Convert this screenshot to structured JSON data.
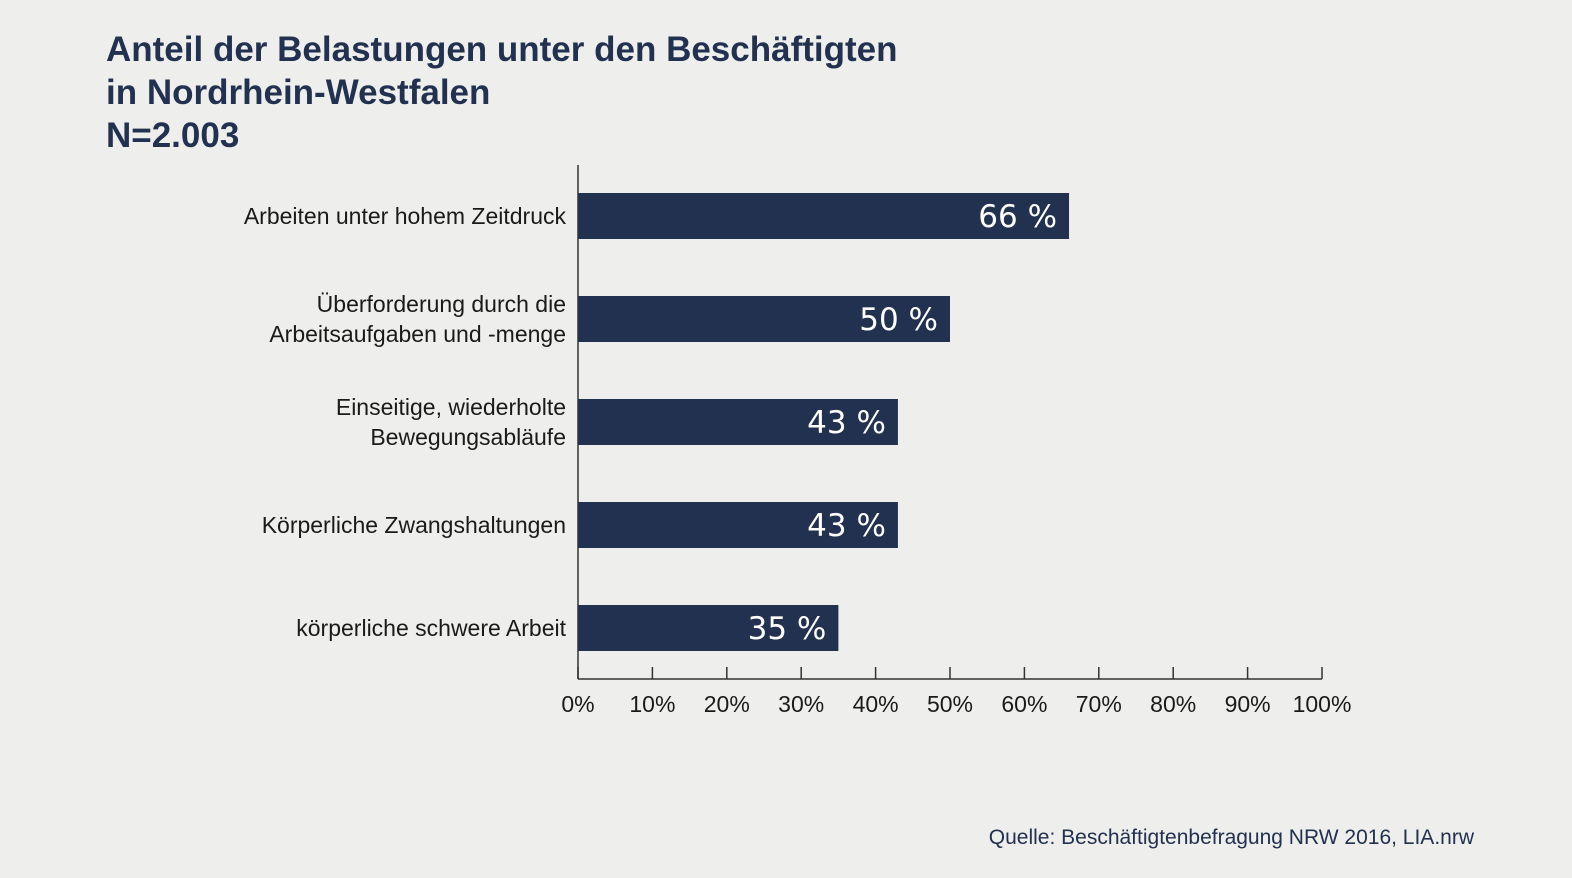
{
  "title_lines": [
    "Anteil der Belastungen unter den Beschäftigten",
    "in Nordrhein-Westfalen",
    "N=2.003"
  ],
  "source": "Quelle: Beschäftigtenbefragung NRW 2016, LIA.nrw",
  "colors": {
    "bar": "#22314f",
    "background": "#eeeeed",
    "text": "#1a1a1a",
    "bar_label": "#ffffff"
  },
  "chart_data": {
    "type": "bar",
    "orientation": "horizontal",
    "categories": [
      [
        "Arbeiten unter hohem Zeitdruck"
      ],
      [
        "Überforderung durch die",
        "Arbeitsaufgaben und -menge"
      ],
      [
        "Einseitige, wiederholte",
        "Bewegungsabläufe"
      ],
      [
        "Körperliche Zwangshaltungen"
      ],
      [
        "körperliche schwere Arbeit"
      ]
    ],
    "values": [
      66,
      50,
      43,
      43,
      35
    ],
    "value_labels": [
      "66 %",
      "50 %",
      "43 %",
      "43 %",
      "35 %"
    ],
    "xlim": [
      0,
      100
    ],
    "xticks": [
      0,
      10,
      20,
      30,
      40,
      50,
      60,
      70,
      80,
      90,
      100
    ],
    "xtick_labels": [
      "0%",
      "10%",
      "20%",
      "30%",
      "40%",
      "50%",
      "60%",
      "70%",
      "80%",
      "90%",
      "100%"
    ],
    "grid": false,
    "legend": false
  }
}
